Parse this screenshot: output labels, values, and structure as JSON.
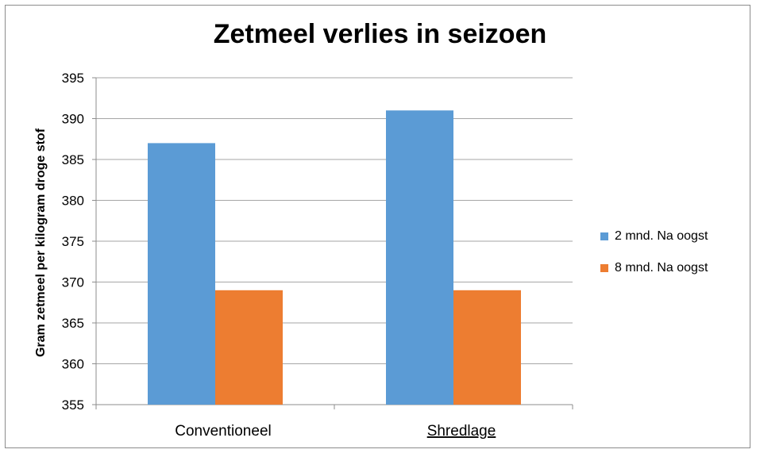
{
  "chart_data": {
    "type": "bar",
    "title": "Zetmeel verlies in seizoen",
    "xlabel": "",
    "ylabel": "Gram zetmeel per kilogram droge stof",
    "categories": [
      "Conventioneel",
      "Shredlage"
    ],
    "series": [
      {
        "name": "2 mnd. Na oogst",
        "values": [
          387,
          391
        ],
        "color": "#5b9bd5"
      },
      {
        "name": "8 mnd. Na oogst",
        "values": [
          369,
          369
        ],
        "color": "#ed7d31"
      }
    ],
    "ylim": [
      355,
      395
    ],
    "yticks": [
      355,
      360,
      365,
      370,
      375,
      380,
      385,
      390,
      395
    ],
    "grid": true,
    "legend_position": "right"
  }
}
